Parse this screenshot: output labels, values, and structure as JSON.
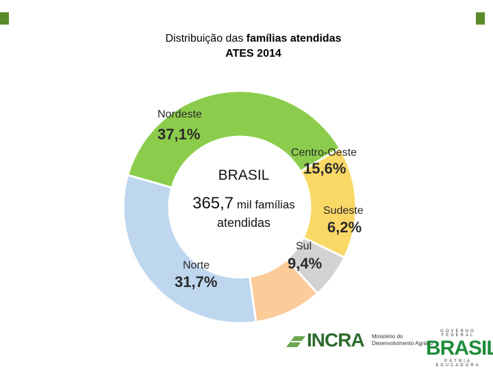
{
  "title": {
    "line1_prefix": "Distribuição das ",
    "line1_bold": "famílias atendidas",
    "line2": "ATES 2014"
  },
  "center": {
    "line1": "BRASIL",
    "value": "365,7",
    "unit": " mil famílias",
    "line3": "atendidas"
  },
  "chart_data": {
    "type": "pie",
    "title": "Distribuição das famílias atendidas ATES 2014",
    "categories": [
      "Nordeste",
      "Centro-Oeste",
      "Sudeste",
      "Sul",
      "Norte"
    ],
    "values": [
      37.1,
      15.6,
      6.2,
      9.4,
      31.7
    ],
    "value_labels": [
      "37,1%",
      "15,6%",
      "6,2%",
      "9,4%",
      "31,7%"
    ],
    "colors": [
      "#8ccc4c",
      "#fad866",
      "#d2d2d2",
      "#fbcb9a",
      "#bed7ee"
    ],
    "donut": true
  },
  "footer": {
    "incra": "INCRA",
    "ministry_line1": "Ministério do",
    "ministry_line2": "Desenvolvimento Agrário",
    "gov_top": "GOVERNO FEDERAL",
    "gov_brasil": "BRASIL",
    "gov_bottom": "PÁTRIA EDUCADORA"
  },
  "colors": {
    "accent": "#5a8a2a"
  }
}
